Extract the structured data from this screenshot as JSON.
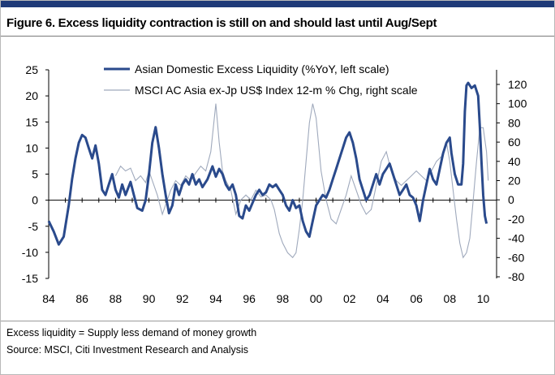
{
  "title": "Figure 6. Excess liquidity contraction is still on and should last until Aug/Sept",
  "notes": {
    "line1": "Excess liquidity = Supply less demand of money growth",
    "line2": "Source: MSCI, Citi Investment Research and Analysis"
  },
  "colors": {
    "header_bar": "#1f3a78",
    "series_primary": "#2a4a8c",
    "series_secondary": "#9fa9bc"
  },
  "chart_data": {
    "type": "line",
    "grid": false,
    "legend_position": "top",
    "x_ticks": [
      "84",
      "86",
      "88",
      "90",
      "92",
      "94",
      "96",
      "98",
      "00",
      "02",
      "04",
      "06",
      "08",
      "10"
    ],
    "y_left": {
      "min": -15,
      "max": 25,
      "ticks": [
        -15,
        -10,
        -5,
        0,
        5,
        10,
        15,
        20,
        25
      ]
    },
    "y_right": {
      "min": -80,
      "max": 130,
      "ticks": [
        -80,
        -60,
        -40,
        -20,
        0,
        20,
        40,
        60,
        80,
        100,
        120
      ]
    },
    "series": [
      {
        "name": "Asian Domestic Excess Liquidity (%YoY, left scale)",
        "axis": "left",
        "points": [
          [
            1984.0,
            -4
          ],
          [
            1984.3,
            -6
          ],
          [
            1984.6,
            -8.5
          ],
          [
            1984.9,
            -7
          ],
          [
            1985.2,
            -1
          ],
          [
            1985.4,
            4
          ],
          [
            1985.6,
            8
          ],
          [
            1985.8,
            11
          ],
          [
            1986.0,
            12.5
          ],
          [
            1986.2,
            12
          ],
          [
            1986.4,
            10
          ],
          [
            1986.6,
            8
          ],
          [
            1986.8,
            10.5
          ],
          [
            1987.0,
            7
          ],
          [
            1987.2,
            2
          ],
          [
            1987.4,
            1
          ],
          [
            1987.6,
            3
          ],
          [
            1987.8,
            5
          ],
          [
            1988.0,
            2
          ],
          [
            1988.2,
            0.5
          ],
          [
            1988.4,
            3
          ],
          [
            1988.6,
            1
          ],
          [
            1988.9,
            3.5
          ],
          [
            1989.1,
            1
          ],
          [
            1989.3,
            -1.5
          ],
          [
            1989.6,
            -2
          ],
          [
            1989.8,
            0
          ],
          [
            1990.0,
            5
          ],
          [
            1990.2,
            11
          ],
          [
            1990.4,
            14
          ],
          [
            1990.6,
            10
          ],
          [
            1990.8,
            5
          ],
          [
            1991.0,
            1
          ],
          [
            1991.2,
            -2.5
          ],
          [
            1991.4,
            -1
          ],
          [
            1991.6,
            3
          ],
          [
            1991.8,
            1
          ],
          [
            1992.0,
            3
          ],
          [
            1992.2,
            4
          ],
          [
            1992.4,
            3
          ],
          [
            1992.6,
            5
          ],
          [
            1992.8,
            3
          ],
          [
            1993.0,
            4
          ],
          [
            1993.2,
            2.5
          ],
          [
            1993.5,
            4
          ],
          [
            1993.8,
            6.5
          ],
          [
            1994.0,
            4.5
          ],
          [
            1994.2,
            6
          ],
          [
            1994.4,
            5
          ],
          [
            1994.6,
            3
          ],
          [
            1994.8,
            2
          ],
          [
            1995.0,
            3
          ],
          [
            1995.2,
            1
          ],
          [
            1995.4,
            -3
          ],
          [
            1995.6,
            -3.5
          ],
          [
            1995.8,
            -1
          ],
          [
            1996.0,
            -2
          ],
          [
            1996.2,
            -0.5
          ],
          [
            1996.4,
            1
          ],
          [
            1996.6,
            2
          ],
          [
            1996.8,
            1
          ],
          [
            1997.0,
            1.5
          ],
          [
            1997.2,
            3
          ],
          [
            1997.4,
            2.5
          ],
          [
            1997.6,
            3
          ],
          [
            1997.8,
            2
          ],
          [
            1998.0,
            1
          ],
          [
            1998.2,
            -1
          ],
          [
            1998.4,
            -2
          ],
          [
            1998.6,
            0
          ],
          [
            1998.8,
            -1.5
          ],
          [
            1999.0,
            -1
          ],
          [
            1999.2,
            -4
          ],
          [
            1999.4,
            -6
          ],
          [
            1999.6,
            -7
          ],
          [
            1999.8,
            -4
          ],
          [
            2000.0,
            -1
          ],
          [
            2000.2,
            0
          ],
          [
            2000.4,
            1
          ],
          [
            2000.6,
            0.5
          ],
          [
            2000.8,
            2
          ],
          [
            2001.0,
            4
          ],
          [
            2001.2,
            6
          ],
          [
            2001.4,
            8
          ],
          [
            2001.6,
            10
          ],
          [
            2001.8,
            12
          ],
          [
            2002.0,
            13
          ],
          [
            2002.2,
            11
          ],
          [
            2002.4,
            8
          ],
          [
            2002.6,
            4
          ],
          [
            2002.8,
            2
          ],
          [
            2003.0,
            0
          ],
          [
            2003.2,
            1
          ],
          [
            2003.4,
            3
          ],
          [
            2003.6,
            5
          ],
          [
            2003.8,
            3
          ],
          [
            2004.0,
            5
          ],
          [
            2004.2,
            6
          ],
          [
            2004.4,
            7
          ],
          [
            2004.6,
            5
          ],
          [
            2004.8,
            3
          ],
          [
            2005.0,
            1
          ],
          [
            2005.2,
            2
          ],
          [
            2005.4,
            3
          ],
          [
            2005.6,
            1
          ],
          [
            2005.8,
            0.5
          ],
          [
            2006.0,
            -1
          ],
          [
            2006.2,
            -4
          ],
          [
            2006.4,
            0
          ],
          [
            2006.6,
            3
          ],
          [
            2006.8,
            6
          ],
          [
            2007.0,
            4
          ],
          [
            2007.2,
            3
          ],
          [
            2007.4,
            6
          ],
          [
            2007.6,
            9
          ],
          [
            2007.8,
            11
          ],
          [
            2008.0,
            12
          ],
          [
            2008.1,
            9
          ],
          [
            2008.3,
            5
          ],
          [
            2008.5,
            3
          ],
          [
            2008.7,
            3
          ],
          [
            2008.8,
            7
          ],
          [
            2008.9,
            17
          ],
          [
            2009.0,
            22
          ],
          [
            2009.1,
            22.5
          ],
          [
            2009.3,
            21.5
          ],
          [
            2009.5,
            22
          ],
          [
            2009.7,
            20
          ],
          [
            2009.8,
            14
          ],
          [
            2009.9,
            7
          ],
          [
            2010.0,
            1
          ],
          [
            2010.1,
            -3
          ],
          [
            2010.2,
            -4.5
          ]
        ]
      },
      {
        "name": "MSCI AC Asia ex-Jp US$ Index 12-m % Chg, right scale",
        "axis": "right",
        "points": [
          [
            1988.0,
            25
          ],
          [
            1988.3,
            35
          ],
          [
            1988.6,
            30
          ],
          [
            1988.9,
            33
          ],
          [
            1989.2,
            20
          ],
          [
            1989.5,
            25
          ],
          [
            1989.8,
            18
          ],
          [
            1990.0,
            30
          ],
          [
            1990.2,
            20
          ],
          [
            1990.5,
            5
          ],
          [
            1990.8,
            -15
          ],
          [
            1991.0,
            -5
          ],
          [
            1991.3,
            10
          ],
          [
            1991.6,
            20
          ],
          [
            1991.9,
            15
          ],
          [
            1992.2,
            25
          ],
          [
            1992.5,
            20
          ],
          [
            1992.8,
            28
          ],
          [
            1993.1,
            35
          ],
          [
            1993.4,
            30
          ],
          [
            1993.7,
            50
          ],
          [
            1993.85,
            75
          ],
          [
            1994.0,
            100
          ],
          [
            1994.2,
            60
          ],
          [
            1994.4,
            30
          ],
          [
            1994.6,
            20
          ],
          [
            1994.9,
            10
          ],
          [
            1995.2,
            -15
          ],
          [
            1995.5,
            0
          ],
          [
            1995.8,
            5
          ],
          [
            1996.1,
            0
          ],
          [
            1996.4,
            10
          ],
          [
            1996.7,
            3
          ],
          [
            1997.0,
            5
          ],
          [
            1997.3,
            0
          ],
          [
            1997.5,
            -10
          ],
          [
            1997.8,
            -35
          ],
          [
            1998.0,
            -45
          ],
          [
            1998.3,
            -55
          ],
          [
            1998.6,
            -60
          ],
          [
            1998.8,
            -55
          ],
          [
            1999.0,
            -30
          ],
          [
            1999.2,
            0
          ],
          [
            1999.4,
            40
          ],
          [
            1999.6,
            80
          ],
          [
            1999.8,
            100
          ],
          [
            2000.0,
            85
          ],
          [
            2000.3,
            30
          ],
          [
            2000.6,
            0
          ],
          [
            2000.9,
            -20
          ],
          [
            2001.2,
            -25
          ],
          [
            2001.5,
            -10
          ],
          [
            2001.8,
            5
          ],
          [
            2002.1,
            25
          ],
          [
            2002.4,
            10
          ],
          [
            2002.7,
            -5
          ],
          [
            2003.0,
            -15
          ],
          [
            2003.3,
            -10
          ],
          [
            2003.6,
            15
          ],
          [
            2003.9,
            40
          ],
          [
            2004.2,
            50
          ],
          [
            2004.5,
            30
          ],
          [
            2004.8,
            20
          ],
          [
            2005.1,
            15
          ],
          [
            2005.4,
            20
          ],
          [
            2005.7,
            25
          ],
          [
            2006.0,
            30
          ],
          [
            2006.3,
            25
          ],
          [
            2006.6,
            20
          ],
          [
            2006.9,
            30
          ],
          [
            2007.2,
            40
          ],
          [
            2007.5,
            45
          ],
          [
            2007.8,
            60
          ],
          [
            2008.0,
            40
          ],
          [
            2008.2,
            10
          ],
          [
            2008.4,
            -20
          ],
          [
            2008.6,
            -45
          ],
          [
            2008.8,
            -60
          ],
          [
            2009.0,
            -55
          ],
          [
            2009.2,
            -40
          ],
          [
            2009.4,
            0
          ],
          [
            2009.6,
            40
          ],
          [
            2009.8,
            75
          ],
          [
            2010.0,
            75
          ],
          [
            2010.2,
            50
          ],
          [
            2010.3,
            20
          ]
        ]
      }
    ]
  }
}
